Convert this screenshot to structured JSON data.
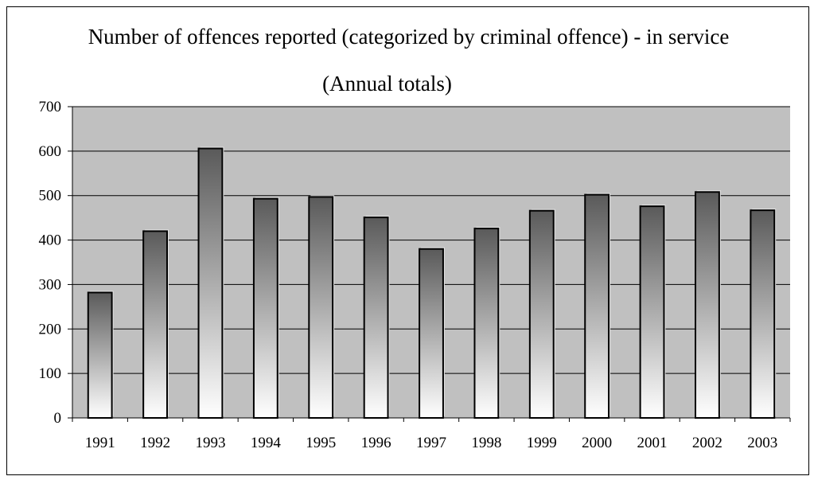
{
  "chart_data": {
    "type": "bar",
    "title": "Number of offences reported (categorized by criminal offence) - in service",
    "subtitle": "(Annual totals)",
    "xlabel": "",
    "ylabel": "",
    "categories": [
      "1991",
      "1992",
      "1993",
      "1994",
      "1995",
      "1996",
      "1997",
      "1998",
      "1999",
      "2000",
      "2001",
      "2002",
      "2003"
    ],
    "series": [
      {
        "values": [
          282,
          420,
          606,
          493,
          497,
          451,
          380,
          426,
          466,
          502,
          476,
          508,
          467
        ]
      }
    ],
    "ylim": [
      0,
      700
    ],
    "yticks": [
      0,
      100,
      200,
      300,
      400,
      500,
      600,
      700
    ],
    "grid": true,
    "legend": "none",
    "colors": {
      "plot_background": "#c0c0c0",
      "bar_top": "#5a5a5a",
      "bar_bottom": "#ffffff",
      "bar_outline": "#000000",
      "gridline": "#000000"
    }
  }
}
